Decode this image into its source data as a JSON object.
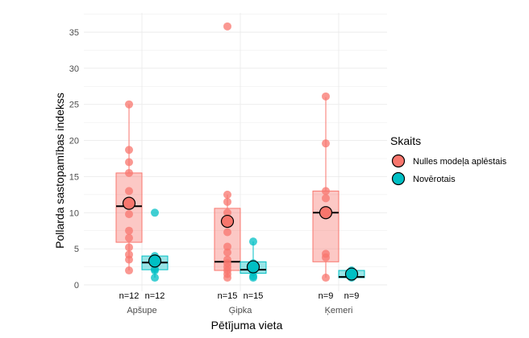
{
  "chart_data": {
    "type": "box",
    "xlabel": "Pētījuma vieta",
    "ylabel": "Pollarda sastopamības indekss",
    "ylim": [
      0,
      37.5
    ],
    "yticks": [
      0,
      5,
      10,
      15,
      20,
      25,
      30,
      35
    ],
    "grid": true,
    "legend_title": "Skaits",
    "legend_position": "right",
    "categories": [
      "Apšupe",
      "Ģipka",
      "Ķemeri"
    ],
    "series": [
      {
        "name": "Nulles modeļa aplēstais",
        "color": "#F8766D",
        "groups": [
          {
            "category": "Apšupe",
            "n_label": "n=12",
            "q1": 5.9,
            "median": 10.9,
            "q3": 15.5,
            "whisker_low": 2.0,
            "whisker_high": 25.0,
            "mean": 11.3,
            "points": [
              2.0,
              3.5,
              4.2,
              5.2,
              6.5,
              7.5,
              9.8,
              11.3,
              13.0,
              15.5,
              17.0,
              18.7,
              25.0
            ]
          },
          {
            "category": "Ģipka",
            "n_label": "n=15",
            "q1": 2.0,
            "median": 3.2,
            "q3": 10.6,
            "whisker_low": 1.0,
            "whisker_high": 12.5,
            "mean": 8.8,
            "points": [
              1.0,
              1.5,
              2.0,
              2.5,
              3.0,
              3.5,
              4.5,
              5.3,
              7.3,
              9.0,
              10.0,
              11.5,
              12.5,
              35.8
            ]
          },
          {
            "category": "Ķemeri",
            "n_label": "n=9",
            "q1": 3.2,
            "median": 10.0,
            "q3": 13.0,
            "whisker_low": 1.0,
            "whisker_high": 26.0,
            "mean": 10.0,
            "points": [
              1.0,
              3.8,
              4.3,
              10.0,
              12.0,
              13.0,
              19.6,
              26.1
            ]
          }
        ]
      },
      {
        "name": "Novērotais",
        "color": "#00BFC4",
        "groups": [
          {
            "category": "Apšupe",
            "n_label": "n=12",
            "q1": 2.1,
            "median": 3.1,
            "q3": 4.0,
            "whisker_low": 1.0,
            "whisker_high": 4.0,
            "mean": 3.3,
            "points": [
              1.0,
              2.0,
              2.2,
              3.0,
              3.2,
              3.6,
              4.0,
              10.0
            ]
          },
          {
            "category": "Ģipka",
            "n_label": "n=15",
            "q1": 1.6,
            "median": 2.1,
            "q3": 3.2,
            "whisker_low": 1.0,
            "whisker_high": 6.0,
            "mean": 2.5,
            "points": [
              1.0,
              1.2,
              1.8,
              2.0,
              2.5,
              3.0,
              6.0
            ]
          },
          {
            "category": "Ķemeri",
            "n_label": "n=9",
            "q1": 1.0,
            "median": 1.1,
            "q3": 2.0,
            "whisker_low": 1.0,
            "whisker_high": 2.0,
            "mean": 1.5,
            "points": [
              1.0,
              1.2,
              1.5,
              1.8,
              2.0
            ]
          }
        ]
      }
    ]
  }
}
